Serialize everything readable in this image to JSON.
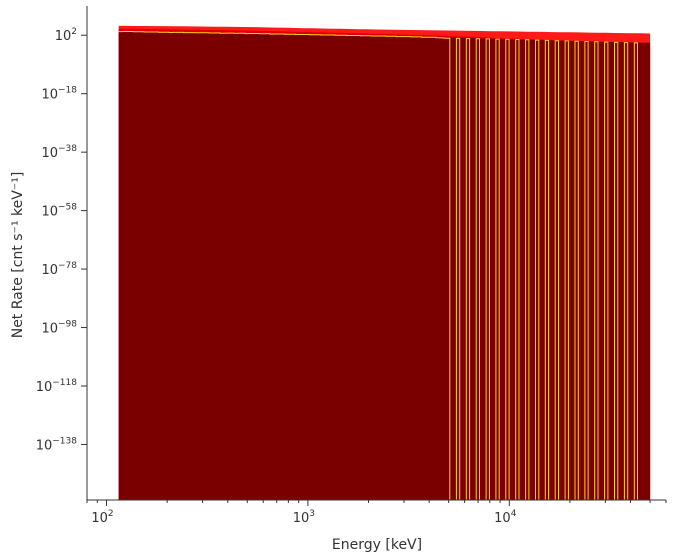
{
  "chart_data": {
    "type": "area",
    "title": "",
    "xlabel": "Energy [keV]",
    "ylabel": "Net Rate [cnt s⁻¹ keV⁻¹]",
    "x_scale": "log",
    "y_scale": "log",
    "xlim": [
      80,
      60000
    ],
    "ylim_exp": [
      -157,
      12
    ],
    "grid": false,
    "legend": "none",
    "x_ticks": [
      {
        "base": "10",
        "exp": "2",
        "value": 100
      },
      {
        "base": "10",
        "exp": "3",
        "value": 1000
      },
      {
        "base": "10",
        "exp": "4",
        "value": 10000
      }
    ],
    "y_ticks": [
      {
        "base": "10",
        "exp": "2",
        "value_exp": 2
      },
      {
        "base": "10",
        "exp": "−18",
        "value_exp": -18
      },
      {
        "base": "10",
        "exp": "−38",
        "value_exp": -38
      },
      {
        "base": "10",
        "exp": "−58",
        "value_exp": -58
      },
      {
        "base": "10",
        "exp": "−78",
        "value_exp": -78
      },
      {
        "base": "10",
        "exp": "−98",
        "value_exp": -98
      },
      {
        "base": "10",
        "exp": "−118",
        "value_exp": -118
      },
      {
        "base": "10",
        "exp": "−138",
        "value_exp": -138
      }
    ],
    "energy_range_keV": [
      115,
      50000
    ],
    "series": [
      {
        "color": "#ff1a1a",
        "style": "filled band (upper envelope)",
        "x": [
          115,
          200,
          500,
          1000,
          2000,
          5000,
          10000,
          20000,
          50000
        ],
        "log10_y": [
          5.2,
          5.1,
          4.8,
          4.4,
          4.0,
          3.6,
          3.3,
          3.0,
          2.6
        ]
      },
      {
        "color": "#dd0000",
        "style": "filled band (middle envelope)",
        "x": [
          115,
          200,
          500,
          1000,
          2000,
          5000,
          10000,
          20000,
          50000
        ],
        "log10_y": [
          4.2,
          4.0,
          3.6,
          3.1,
          2.6,
          1.8,
          0.9,
          0.2,
          -0.8
        ]
      },
      {
        "color": "#7a0000",
        "style": "filled (net rate region)",
        "x": [
          115,
          200,
          500,
          1000,
          2000,
          5000,
          10000,
          20000,
          50000
        ],
        "log10_y": [
          3.3,
          3.0,
          2.6,
          2.2,
          1.8,
          1.2,
          0.6,
          0.0,
          -0.6
        ]
      },
      {
        "color": "#ffd21e",
        "style": "step line (dropouts to axis floor above ~4.7 keV×10³)",
        "x": [
          115,
          200,
          500,
          1000,
          2000,
          4000,
          4700,
          10000,
          20000,
          45000
        ],
        "log10_y": [
          3.3,
          3.0,
          2.6,
          2.2,
          1.8,
          1.3,
          1.0,
          0.6,
          0.0,
          -0.7
        ]
      }
    ]
  }
}
